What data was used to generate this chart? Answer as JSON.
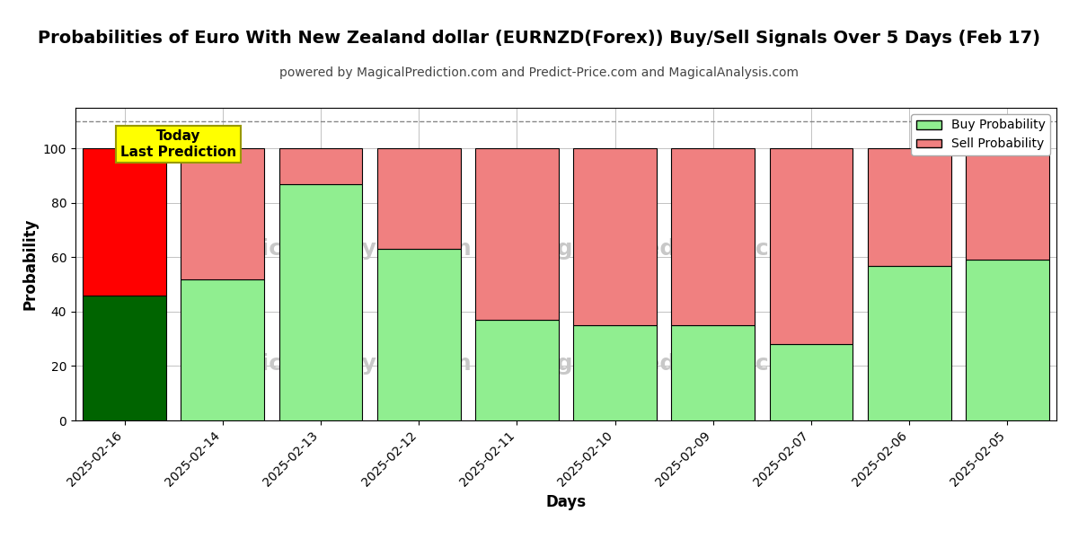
{
  "title": "Probabilities of Euro With New Zealand dollar (EURNZD(Forex)) Buy/Sell Signals Over 5 Days (Feb 17)",
  "subtitle": "powered by MagicalPrediction.com and Predict-Price.com and MagicalAnalysis.com",
  "xlabel": "Days",
  "ylabel": "Probability",
  "dates": [
    "2025-02-16",
    "2025-02-14",
    "2025-02-13",
    "2025-02-12",
    "2025-02-11",
    "2025-02-10",
    "2025-02-09",
    "2025-02-07",
    "2025-02-06",
    "2025-02-05"
  ],
  "buy_values": [
    46,
    52,
    87,
    63,
    37,
    35,
    35,
    28,
    57,
    59
  ],
  "sell_values": [
    54,
    48,
    13,
    37,
    63,
    65,
    65,
    72,
    43,
    41
  ],
  "today_bar_buy_color": "#006400",
  "today_bar_sell_color": "#ff0000",
  "other_bar_buy_color": "#90ee90",
  "other_bar_sell_color": "#f08080",
  "bar_edge_color": "#000000",
  "bar_width": 0.85,
  "ylim": [
    0,
    115
  ],
  "yticks": [
    0,
    20,
    40,
    60,
    80,
    100
  ],
  "dashed_line_y": 110,
  "dashed_line_color": "#888888",
  "grid_color": "#aaaaaa",
  "background_color": "#ffffff",
  "today_label": "Today\nLast Prediction",
  "today_label_bg": "#ffff00",
  "legend_buy_color": "#90ee90",
  "legend_sell_color": "#f08080",
  "legend_buy_label": "Buy Probability",
  "legend_sell_label": "Sell Probability",
  "title_fontsize": 14,
  "subtitle_fontsize": 10,
  "axis_label_fontsize": 12,
  "tick_fontsize": 10,
  "watermark_color": "#c8c8c8"
}
